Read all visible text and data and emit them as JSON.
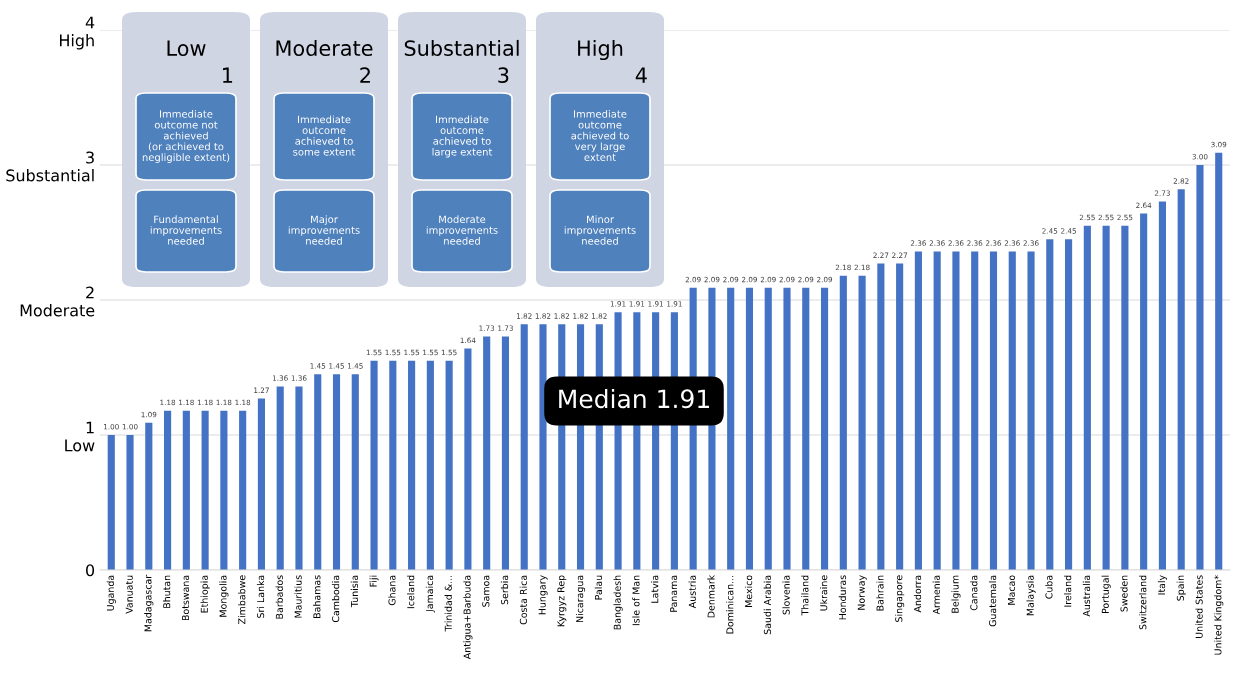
{
  "chart_data": {
    "type": "bar",
    "categories": [
      "Uganda",
      "Vanuatu",
      "Madagascar",
      "Bhutan",
      "Botswana",
      "Ethiopia",
      "Mongolia",
      "Zimbabwe",
      "Sri Lanka",
      "Barbados",
      "Mauritius",
      "Bahamas",
      "Cambodia",
      "Tunisia",
      "Fiji",
      "Ghana",
      "Iceland",
      "Jamaica",
      "Trinidad &...",
      "Antigua+Barbuda",
      "Samoa",
      "Serbia",
      "Costa Rica",
      "Hungary",
      "Kyrgyz Rep",
      "Nicaragua",
      "Palau",
      "Bangladesh",
      "Isle of Man",
      "Latvia",
      "Panama",
      "Austria",
      "Denmark",
      "Dominican...",
      "Mexico",
      "Saudi Arabia",
      "Slovenia",
      "Thailand",
      "Ukraine",
      "Honduras",
      "Norway",
      "Bahrain",
      "Singapore",
      "Andorra",
      "Armenia",
      "Belgium",
      "Canada",
      "Guatemala",
      "Macao",
      "Malaysia",
      "Cuba",
      "Ireland",
      "Australia",
      "Portugal",
      "Sweden",
      "Switzerland",
      "Italy",
      "Spain",
      "United States",
      "United Kingdom*"
    ],
    "values": [
      1.0,
      1.0,
      1.09,
      1.18,
      1.18,
      1.18,
      1.18,
      1.18,
      1.27,
      1.36,
      1.36,
      1.45,
      1.45,
      1.45,
      1.55,
      1.55,
      1.55,
      1.55,
      1.55,
      1.64,
      1.73,
      1.73,
      1.82,
      1.82,
      1.82,
      1.82,
      1.82,
      1.91,
      1.91,
      1.91,
      1.91,
      2.09,
      2.09,
      2.09,
      2.09,
      2.09,
      2.09,
      2.09,
      2.09,
      2.18,
      2.18,
      2.27,
      2.27,
      2.36,
      2.36,
      2.36,
      2.36,
      2.36,
      2.36,
      2.36,
      2.45,
      2.45,
      2.55,
      2.55,
      2.55,
      2.64,
      2.73,
      2.82,
      3.0,
      3.09
    ],
    "value_labels": [
      "1.00",
      "1.00",
      "1.09",
      "1.18",
      "1.18",
      "1.18",
      "1.18",
      "1.18",
      "1.27",
      "1.36",
      "1.36",
      "1.45",
      "1.45",
      "1.45",
      "1.55",
      "1.55",
      "1.55",
      "1.55",
      "1.55",
      "1.64",
      "1.73",
      "1.73",
      "1.82",
      "1.82",
      "1.82",
      "1.82",
      "1.82",
      "1.91",
      "1.91",
      "1.91",
      "1.91",
      "2.09",
      "2.09",
      "2.09",
      "2.09",
      "2.09",
      "2.09",
      "2.09",
      "2.09",
      "2.18",
      "2.18",
      "2.27",
      "2.27",
      "2.36",
      "2.36",
      "2.36",
      "2.36",
      "2.36",
      "2.36",
      "2.36",
      "2.45",
      "2.45",
      "2.55",
      "2.55",
      "2.55",
      "2.64",
      "2.73",
      "2.82",
      "3.00",
      "3.09"
    ],
    "color": "#4472c4",
    "ylim": [
      0,
      4
    ],
    "yticks": [
      0,
      {
        "value": 1,
        "label": "1\nLow"
      },
      {
        "value": 2,
        "label": "2\nModerate"
      },
      {
        "value": 3,
        "label": "3\nSubstantial"
      },
      {
        "value": 4,
        "label": "4\nHigh"
      }
    ],
    "grid": "y",
    "annotations": [
      "Low",
      "1",
      "Immediate\noutcome not\nachieved\n(or achieved to\nnegligible extent)",
      "Fundamental\nimprovements\nneeded",
      "Moderate",
      "2",
      "Immediate\noutcome\nachieved to\nsome extent",
      "Major\nimprovements\nneeded",
      "Substantial",
      "3",
      "Immediate\noutcome\nachieved to\nlarge extent",
      "Moderate\nimprovements\nneeded",
      "High",
      "4",
      "Immediate\noutcome\nachieved to\nvery large\nextent",
      "Minor\nimprovements\nneeded",
      "Median 1.91"
    ]
  }
}
